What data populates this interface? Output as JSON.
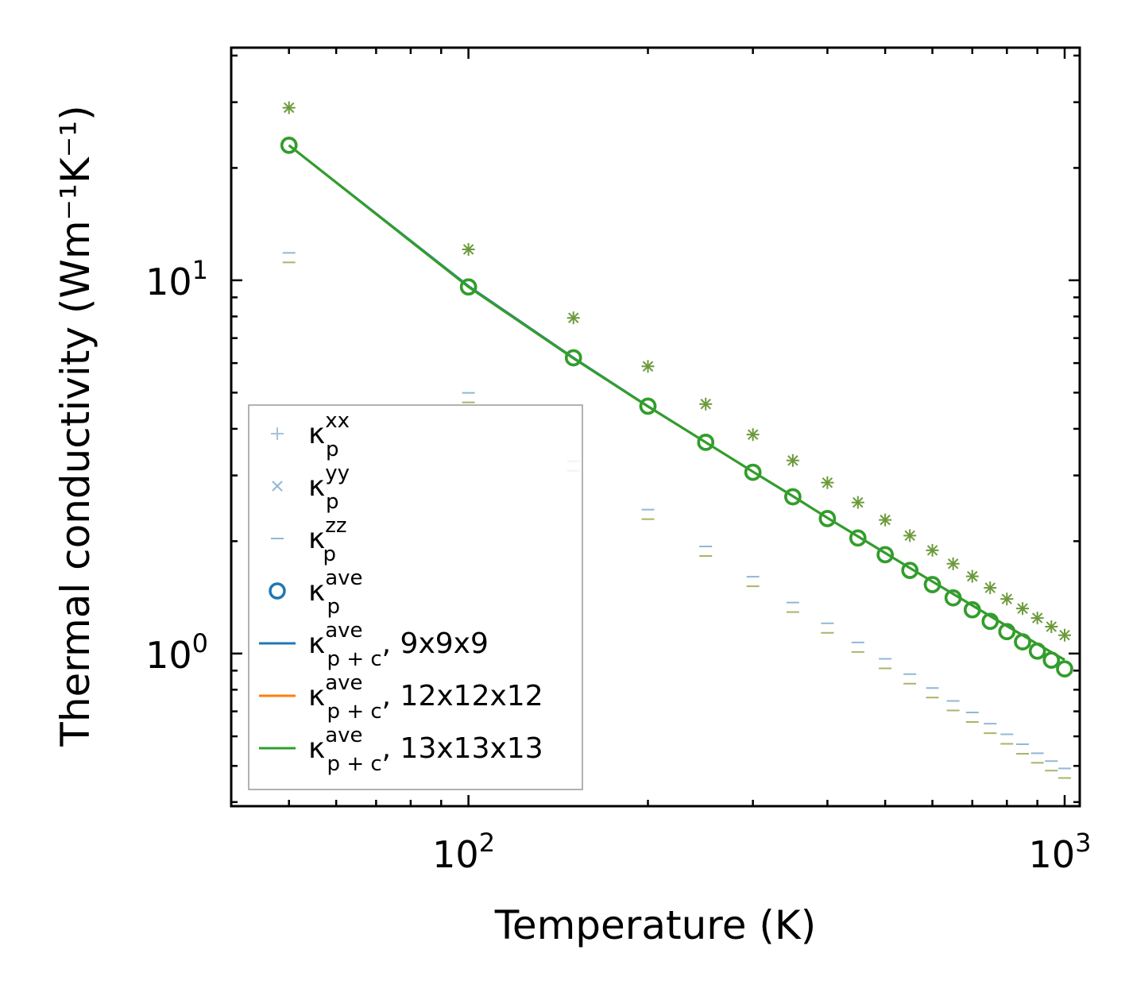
{
  "chart_data": {
    "type": "scatter",
    "title": "",
    "xlabel": "Temperature (K)",
    "ylabel": "Thermal conductivity (Wm⁻¹K⁻¹)",
    "xscale": "log",
    "yscale": "log",
    "xlim": [
      40,
      1060
    ],
    "ylim": [
      0.39,
      42
    ],
    "x_ticks": [
      {
        "value": 100,
        "base": "10",
        "exp": "2"
      },
      {
        "value": 1000,
        "base": "10",
        "exp": "3"
      }
    ],
    "y_ticks": [
      {
        "value": 1,
        "base": "10",
        "exp": "0"
      },
      {
        "value": 10,
        "base": "10",
        "exp": "1"
      }
    ],
    "legend_position": "lower-left",
    "x": [
      50,
      100,
      150,
      200,
      250,
      300,
      350,
      400,
      450,
      500,
      550,
      600,
      650,
      700,
      750,
      800,
      850,
      900,
      950,
      1000
    ],
    "series": [
      {
        "name": "kxx",
        "kind": "marker",
        "marker": "plus",
        "color": "#a8c2dc",
        "label_base": "κ",
        "label_sub": "p",
        "label_sup": "xx",
        "values": [
          29.0,
          12.1,
          7.93,
          5.88,
          4.66,
          3.86,
          3.29,
          2.87,
          2.54,
          2.28,
          2.07,
          1.89,
          1.74,
          1.61,
          1.5,
          1.4,
          1.32,
          1.245,
          1.18,
          1.12
        ]
      },
      {
        "name": "kyy",
        "kind": "marker",
        "marker": "cross",
        "color": "#8fb8d4",
        "label_base": "κ",
        "label_sub": "p",
        "label_sup": "yy",
        "values": [
          29.0,
          12.1,
          7.93,
          5.88,
          4.66,
          3.86,
          3.29,
          2.87,
          2.54,
          2.28,
          2.07,
          1.89,
          1.74,
          1.61,
          1.5,
          1.4,
          1.32,
          1.245,
          1.18,
          1.12
        ]
      },
      {
        "name": "kzz",
        "kind": "marker",
        "marker": "hline",
        "color": "#8fb8d4",
        "label_base": "κ",
        "label_sub": "p",
        "label_sup": "zz",
        "values": [
          11.5,
          4.85,
          3.18,
          2.36,
          1.88,
          1.56,
          1.33,
          1.17,
          1.04,
          0.94,
          0.855,
          0.785,
          0.725,
          0.675,
          0.63,
          0.59,
          0.555,
          0.525,
          0.5,
          0.478
        ]
      },
      {
        "name": "kave",
        "kind": "circle",
        "color": "#1f77b4",
        "label_base": "κ",
        "label_sub": "p",
        "label_sup": "ave",
        "values": [
          23.0,
          9.6,
          6.2,
          4.6,
          3.68,
          3.06,
          2.63,
          2.3,
          2.04,
          1.84,
          1.67,
          1.53,
          1.41,
          1.31,
          1.22,
          1.145,
          1.075,
          1.015,
          0.96,
          0.91
        ]
      },
      {
        "name": "k9",
        "kind": "line",
        "color": "#1f77b4",
        "label_base": "κ",
        "label_sub": "p + c",
        "label_sup": "ave",
        "label_suffix": ", 9x9x9",
        "values": [
          23.0,
          9.65,
          6.2,
          4.6,
          3.68,
          3.07,
          2.64,
          2.31,
          2.06,
          1.86,
          1.695,
          1.56,
          1.445,
          1.345,
          1.26,
          1.185,
          1.12,
          1.06,
          1.008,
          0.962
        ]
      },
      {
        "name": "k12",
        "kind": "line",
        "color": "#ff7f0e",
        "label_base": "κ",
        "label_sub": "p + c",
        "label_sup": "ave",
        "label_suffix": ", 12x12x12",
        "values": [
          23.0,
          9.6,
          6.18,
          4.59,
          3.68,
          3.07,
          2.64,
          2.31,
          2.06,
          1.86,
          1.695,
          1.56,
          1.445,
          1.345,
          1.26,
          1.185,
          1.12,
          1.06,
          1.008,
          0.962
        ]
      },
      {
        "name": "k13",
        "kind": "line",
        "color": "#2ca02c",
        "label_base": "κ",
        "label_sub": "p + c",
        "label_sup": "ave",
        "label_suffix": ", 13x13x13",
        "values": [
          23.0,
          9.6,
          6.18,
          4.59,
          3.68,
          3.07,
          2.64,
          2.31,
          2.06,
          1.86,
          1.695,
          1.56,
          1.445,
          1.345,
          1.26,
          1.185,
          1.12,
          1.06,
          1.008,
          0.962
        ]
      }
    ],
    "overlay_colors": {
      "k12_circles": "#ff7f0e",
      "k13_circles": "#2ca02c",
      "k13_markers": "#6b9a3a",
      "k13_hline": "#a8b46a"
    }
  }
}
